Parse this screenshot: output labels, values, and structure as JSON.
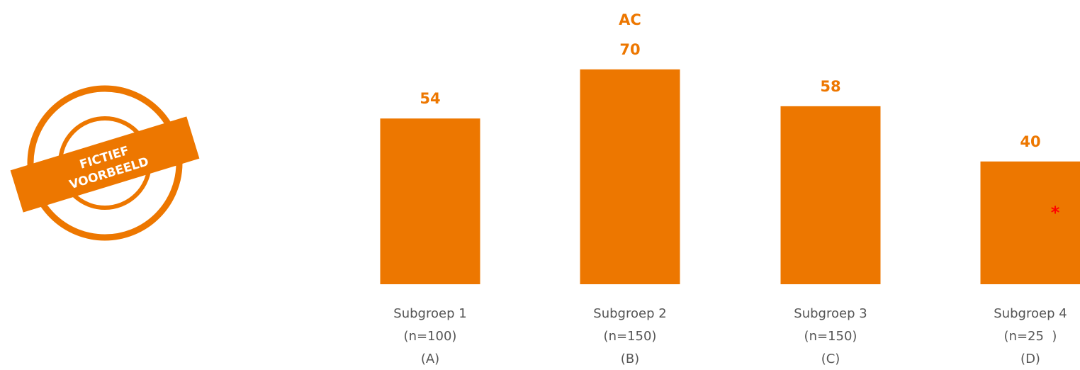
{
  "stamp": {
    "line1": "FICTIEF",
    "line2": "VOORBEELD"
  },
  "colors": {
    "bar": "#ED7700",
    "label": "#ED7700",
    "asterisk": "#FF0000",
    "category": "#555555"
  },
  "chart_data": {
    "type": "bar",
    "categories": [
      [
        "Subgroep 1",
        "(n=100)",
        "(A)"
      ],
      [
        "Subgroep 2",
        "(n=150)",
        "(B)"
      ],
      [
        "Subgroep 3",
        "(n=150)",
        "(C)"
      ],
      [
        "Subgroep 4",
        "(n=25  )",
        "(D)"
      ]
    ],
    "values": [
      54,
      70,
      58,
      40
    ],
    "significance": [
      "",
      "AC",
      "",
      ""
    ],
    "markers": [
      "",
      "",
      "",
      "*"
    ],
    "ylim": [
      0,
      100
    ],
    "grid": false,
    "title": "",
    "xlabel": "",
    "ylabel": ""
  }
}
